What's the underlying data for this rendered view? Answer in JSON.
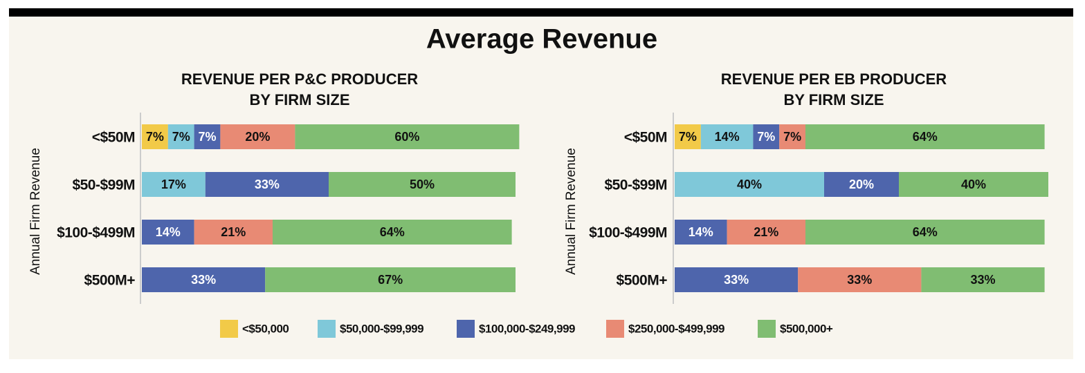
{
  "title": "Average Revenue",
  "chart_data": [
    {
      "type": "stacked-bar-horizontal",
      "title": [
        "REVENUE PER P&C PRODUCER",
        "BY FIRM SIZE"
      ],
      "y_label": "Annual Firm Revenue",
      "categories": [
        "<$50M",
        "$50-$99M",
        "$100-$499M",
        "$500M+"
      ],
      "xlim": [
        0,
        100
      ],
      "legend": "bottom",
      "series": [
        {
          "name": "<$50,000",
          "color": "#f2ca48",
          "values": [
            7,
            null,
            null,
            null
          ],
          "value_labels": [
            "7%",
            null,
            null,
            null
          ]
        },
        {
          "name": "$50,000-$99,999",
          "color": "#7fc8d9",
          "values": [
            7,
            17,
            null,
            null
          ],
          "value_labels": [
            "7%",
            "17%",
            null,
            null
          ]
        },
        {
          "name": "$100,000-$249,999",
          "color": "#4e65ac",
          "values": [
            7,
            33,
            14,
            33
          ],
          "value_labels": [
            "7%",
            "33%",
            "14%",
            "33%"
          ]
        },
        {
          "name": "$250,000-$499,999",
          "color": "#e88a74",
          "values": [
            20,
            null,
            21,
            null
          ],
          "value_labels": [
            "20%",
            null,
            "21%",
            null
          ]
        },
        {
          "name": "$500,000+",
          "color": "#80bd72",
          "values": [
            60,
            50,
            64,
            67
          ],
          "value_labels": [
            "60%",
            "50%",
            "64%",
            "67%"
          ]
        }
      ]
    },
    {
      "type": "stacked-bar-horizontal",
      "title": [
        "REVENUE PER EB PRODUCER",
        "BY FIRM SIZE"
      ],
      "y_label": "Annual Firm Revenue",
      "categories": [
        "<$50M",
        "$50-$99M",
        "$100-$499M",
        "$500M+"
      ],
      "xlim": [
        0,
        100
      ],
      "series": [
        {
          "name": "<$50,000",
          "color": "#f2ca48",
          "values": [
            7,
            null,
            null,
            null
          ],
          "value_labels": [
            "7%",
            null,
            null,
            null
          ]
        },
        {
          "name": "$50,000-$99,999",
          "color": "#7fc8d9",
          "values": [
            14,
            40,
            null,
            null
          ],
          "value_labels": [
            "14%",
            "40%",
            null,
            null
          ]
        },
        {
          "name": "$100,000-$249,999",
          "color": "#4e65ac",
          "values": [
            7,
            20,
            14,
            33
          ],
          "value_labels": [
            "7%",
            "20%",
            "14%",
            "33%"
          ]
        },
        {
          "name": "$250,000-$499,999",
          "color": "#e88a74",
          "values": [
            7,
            null,
            21,
            33
          ],
          "value_labels": [
            "7%",
            null,
            "21%",
            "33%"
          ]
        },
        {
          "name": "$500,000+",
          "color": "#80bd72",
          "values": [
            64,
            40,
            64,
            33
          ],
          "value_labels": [
            "64%",
            "40%",
            "64%",
            "33%"
          ]
        }
      ]
    }
  ]
}
